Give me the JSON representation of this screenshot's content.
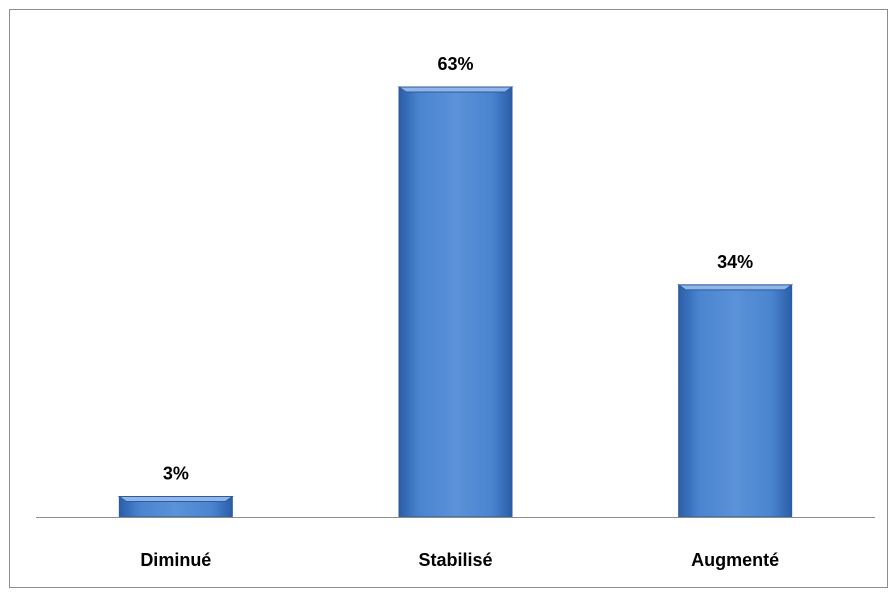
{
  "chart_data": {
    "type": "bar",
    "categories": [
      "Diminué",
      "Stabilisé",
      "Augmenté"
    ],
    "values": [
      3,
      63,
      34
    ],
    "data_labels": [
      "3%",
      "63%",
      "34%"
    ],
    "title": "",
    "xlabel": "",
    "ylabel": "",
    "ylim": [
      0,
      70
    ],
    "unit": "%",
    "grid": false,
    "legend": "none",
    "colors": {
      "bar_fill_light": "#5b92d8",
      "bar_fill_dark": "#2a5ea8",
      "bar_edge": "#2f5b99",
      "bar_top": "#8fb5ea",
      "axis": "#8c8c8c",
      "frame": "#8c8c8c",
      "text": "#000000"
    }
  }
}
